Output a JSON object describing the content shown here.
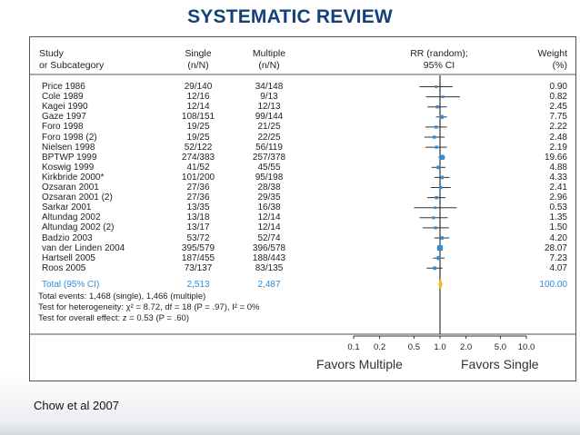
{
  "slide": {
    "title": "SYSTEMATIC REVIEW",
    "caption": "Chow et al 2007"
  },
  "table": {
    "headers": {
      "study": [
        "Study",
        "or Subcategory"
      ],
      "single": [
        "Single",
        "(n/N)"
      ],
      "multiple": [
        "Multiple",
        "(n/N)"
      ],
      "rr": [
        "RR (random);",
        "95% CI"
      ],
      "weight": [
        "Weight",
        "(%)"
      ]
    },
    "total": {
      "label": "Total (95% CI)",
      "single": "2,513",
      "multiple": "2,487",
      "weight": "100.00"
    },
    "notes": [
      "Total events: 1,468 (single), 1,466 (multiple)",
      "Test for heterogeneity: χ² = 8.72, df = 18 (P = .97), I² = 0%",
      "Test for overall effect: z = 0.53 (P = .60)"
    ],
    "favors_left": "Favors Multiple",
    "favors_right": "Favors Single"
  },
  "chart_data": {
    "type": "forest",
    "scale": "log",
    "xlim": [
      0.1,
      10
    ],
    "xticks": [
      0.1,
      0.2,
      0.5,
      1.0,
      2.0,
      5.0,
      10.0
    ],
    "xtick_labels": [
      "0.1",
      "0.2",
      "0.5",
      "1.0",
      "2.0",
      "5.0",
      "10.0"
    ],
    "reference_line": 1.0,
    "studies": [
      {
        "study": "Price 1986",
        "single": "29/140",
        "multiple": "34/148",
        "weight": "0.90",
        "rr": 0.9,
        "ci": [
          0.58,
          1.4
        ]
      },
      {
        "study": "Cole 1989",
        "single": "12/16",
        "multiple": "9/13",
        "weight": "0.82",
        "rr": 1.08,
        "ci": [
          0.69,
          1.7
        ]
      },
      {
        "study": "Kagei 1990",
        "single": "12/14",
        "multiple": "12/13",
        "weight": "2.45",
        "rr": 0.93,
        "ci": [
          0.72,
          1.2
        ]
      },
      {
        "study": "Gaze 1997",
        "single": "108/151",
        "multiple": "99/144",
        "weight": "7.75",
        "rr": 1.04,
        "ci": [
          0.9,
          1.2
        ]
      },
      {
        "study": "Foro 1998",
        "single": "19/25",
        "multiple": "21/25",
        "weight": "2.22",
        "rr": 0.9,
        "ci": [
          0.68,
          1.2
        ]
      },
      {
        "study": "Foro 1998 (2)",
        "single": "19/25",
        "multiple": "22/25",
        "weight": "2.48",
        "rr": 0.86,
        "ci": [
          0.66,
          1.13
        ]
      },
      {
        "study": "Nielsen 1998",
        "single": "52/122",
        "multiple": "56/119",
        "weight": "2.19",
        "rr": 0.91,
        "ci": [
          0.68,
          1.2
        ]
      },
      {
        "study": "BPTWP 1999",
        "single": "274/383",
        "multiple": "257/378",
        "weight": "19.66",
        "rr": 1.05,
        "ci": [
          0.96,
          1.15
        ]
      },
      {
        "study": "Koswig 1999",
        "single": "41/52",
        "multiple": "45/55",
        "weight": "4.88",
        "rr": 0.96,
        "ci": [
          0.8,
          1.16
        ]
      },
      {
        "study": "Kirkbride 2000*",
        "single": "101/200",
        "multiple": "95/198",
        "weight": "4.33",
        "rr": 1.05,
        "ci": [
          0.86,
          1.29
        ]
      },
      {
        "study": "Ozsaran 2001",
        "single": "27/36",
        "multiple": "28/38",
        "weight": "2.41",
        "rr": 1.02,
        "ci": [
          0.78,
          1.33
        ]
      },
      {
        "study": "Ozsaran 2001 (2)",
        "single": "27/36",
        "multiple": "29/35",
        "weight": "2.96",
        "rr": 0.91,
        "ci": [
          0.71,
          1.16
        ]
      },
      {
        "study": "Sarkar 2001",
        "single": "13/35",
        "multiple": "16/38",
        "weight": "0.53",
        "rr": 0.88,
        "ci": [
          0.5,
          1.56
        ]
      },
      {
        "study": "Altundag 2002",
        "single": "13/18",
        "multiple": "12/14",
        "weight": "1.35",
        "rr": 0.84,
        "ci": [
          0.58,
          1.23
        ]
      },
      {
        "study": "Altundag 2002 (2)",
        "single": "13/17",
        "multiple": "12/14",
        "weight": "1.50",
        "rr": 0.89,
        "ci": [
          0.63,
          1.27
        ]
      },
      {
        "study": "Badzio 2003",
        "single": "53/72",
        "multiple": "52/74",
        "weight": "4.20",
        "rr": 1.05,
        "ci": [
          0.86,
          1.28
        ]
      },
      {
        "study": "van der Linden 2004",
        "single": "395/579",
        "multiple": "396/578",
        "weight": "28.07",
        "rr": 1.0,
        "ci": [
          0.92,
          1.08
        ]
      },
      {
        "study": "Hartsell 2005",
        "single": "187/455",
        "multiple": "188/443",
        "weight": "7.23",
        "rr": 0.97,
        "ci": [
          0.83,
          1.13
        ]
      },
      {
        "study": "Roos 2005",
        "single": "73/137",
        "multiple": "83/135",
        "weight": "4.07",
        "rr": 0.87,
        "ci": [
          0.7,
          1.07
        ]
      }
    ],
    "pooled": {
      "rr": 1.01,
      "ci": [
        0.97,
        1.06
      ]
    },
    "colors": {
      "square": "#2f8bd6",
      "diamond": "#f2c316",
      "line": "#333333"
    }
  }
}
